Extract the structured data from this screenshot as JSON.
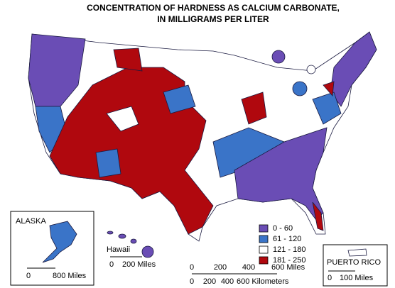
{
  "title": [
    "CONCENTRATION OF HARDNESS AS CALCIUM CARBONATE,",
    "IN MILLIGRAMS PER LITER"
  ],
  "legend": [
    {
      "label": "0 - 60",
      "color": "#6a4db5"
    },
    {
      "label": "61 - 120",
      "color": "#3a74c8"
    },
    {
      "label": "121 - 180",
      "color": "#ffffff"
    },
    {
      "label": "181 - 250",
      "color": "#b0080e"
    }
  ],
  "insets": {
    "alaska": {
      "label": "ALASKA",
      "scale": [
        "0",
        "800 Miles"
      ]
    },
    "hawaii": {
      "label": "Hawaii",
      "scale": [
        "0",
        "200 Miles"
      ]
    },
    "puerto_rico": {
      "label": "PUERTO RICO",
      "scale": [
        "0",
        "100 Miles"
      ]
    }
  },
  "scale": {
    "miles": [
      "0",
      "200",
      "400",
      "600 Miles"
    ],
    "kilometers": [
      "0",
      "200",
      "400",
      "600 Kilometers"
    ]
  }
}
